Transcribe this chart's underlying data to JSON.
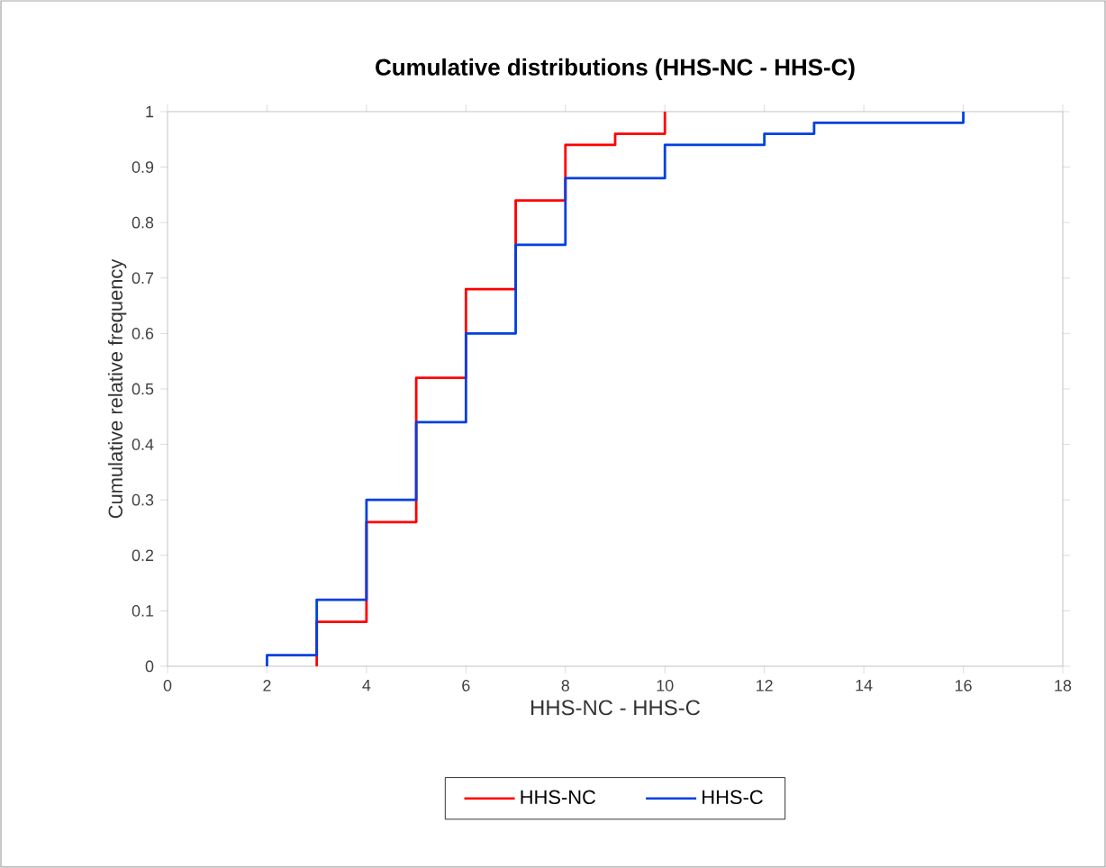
{
  "chart_data": {
    "type": "step",
    "title": "Cumulative distributions (HHS-NC - HHS-C)",
    "xlabel": "HHS-NC - HHS-C",
    "ylabel": "Cumulative relative frequency",
    "xlim": [
      0,
      18
    ],
    "xticks": [
      0,
      2,
      4,
      6,
      8,
      10,
      12,
      14,
      16,
      18
    ],
    "ylim": [
      0,
      1
    ],
    "yticks": [
      0,
      0.1,
      0.2,
      0.3,
      0.4,
      0.5,
      0.6,
      0.7,
      0.8,
      0.9,
      1
    ],
    "grid": false,
    "legend": "bottom",
    "line_style": "solid",
    "marker": "none",
    "series": [
      {
        "name": "HHS-NC",
        "color": "#ff0000",
        "x": [
          3,
          3,
          4,
          5,
          6,
          7,
          8,
          9,
          10
        ],
        "values": [
          0,
          0.08,
          0.26,
          0.52,
          0.68,
          0.84,
          0.94,
          0.96,
          1
        ]
      },
      {
        "name": "HHS-C",
        "color": "#0040e0",
        "x": [
          2,
          2,
          3,
          4,
          5,
          6,
          7,
          8,
          10,
          12,
          13,
          16
        ],
        "values": [
          0,
          0.02,
          0.12,
          0.3,
          0.44,
          0.6,
          0.76,
          0.88,
          0.94,
          0.96,
          0.98,
          1
        ]
      }
    ]
  }
}
